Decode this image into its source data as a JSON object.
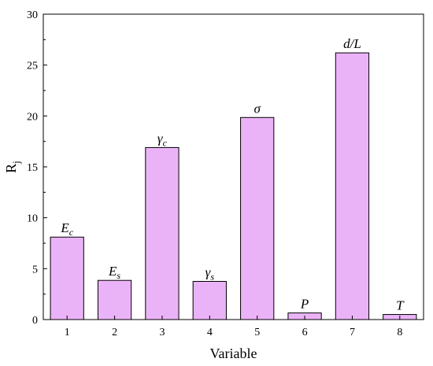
{
  "chart_data": {
    "type": "bar",
    "categories": [
      "1",
      "2",
      "3",
      "4",
      "5",
      "6",
      "7",
      "8"
    ],
    "values": [
      8.1,
      3.85,
      16.9,
      3.75,
      19.85,
      0.65,
      26.2,
      0.5
    ],
    "bar_labels": [
      {
        "main": "E",
        "sub": "c"
      },
      {
        "main": "E",
        "sub": "s"
      },
      {
        "main": "γ",
        "sub": "c"
      },
      {
        "main": "γ",
        "sub": "s"
      },
      {
        "main": "σ",
        "sub": ""
      },
      {
        "main": "P",
        "sub": ""
      },
      {
        "main": "d/L",
        "sub": ""
      },
      {
        "main": "T",
        "sub": ""
      }
    ],
    "xlabel": "Variable",
    "ylabel_main": "R",
    "ylabel_sub": "j",
    "ylim": [
      0,
      30
    ],
    "yticks": [
      0,
      5,
      10,
      15,
      20,
      25,
      30
    ],
    "grid": false,
    "legend": "none",
    "bar_color": "#EBB3F7",
    "edge_color": "#000000"
  }
}
